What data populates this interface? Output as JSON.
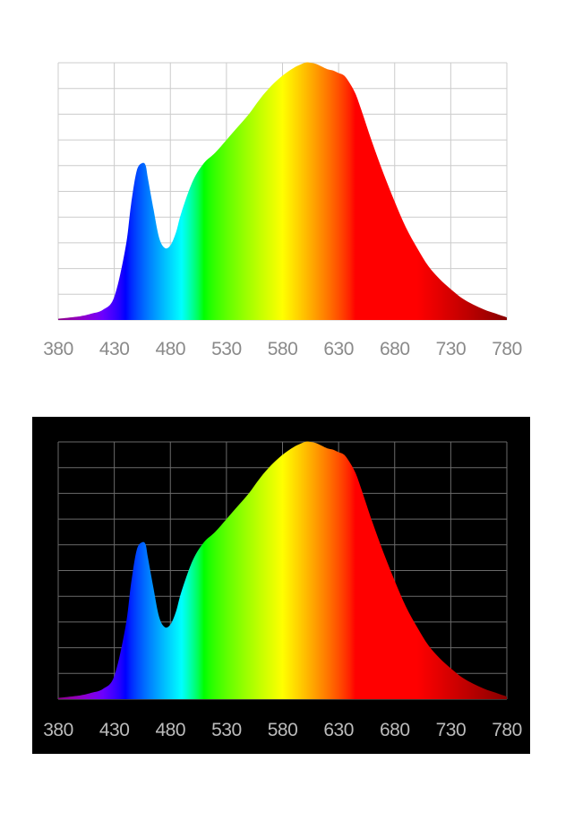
{
  "chart_data": [
    {
      "type": "area",
      "theme": "light",
      "background": "#ffffff",
      "grid": true,
      "grid_color": "#cccccc",
      "label_color": "#8a8a8a",
      "xlim": [
        380,
        780
      ],
      "ylim": [
        0,
        100
      ],
      "x_ticks": [
        "380",
        "430",
        "480",
        "530",
        "580",
        "630",
        "680",
        "730",
        "780"
      ],
      "fill": "visible-spectrum-gradient",
      "x": [
        380,
        400,
        410,
        420,
        430,
        440,
        445,
        450,
        455,
        458,
        460,
        465,
        470,
        475,
        480,
        485,
        490,
        500,
        510,
        520,
        530,
        540,
        550,
        560,
        570,
        580,
        590,
        600,
        605,
        610,
        615,
        620,
        625,
        630,
        635,
        640,
        645,
        650,
        660,
        670,
        680,
        690,
        700,
        710,
        720,
        730,
        740,
        750,
        760,
        770,
        780
      ],
      "y": [
        0.5,
        1.5,
        2.5,
        4,
        9,
        28,
        45,
        58,
        61,
        60,
        55,
        43,
        32,
        28,
        29,
        34,
        42,
        54,
        61,
        65,
        70,
        75,
        80,
        86,
        91,
        95,
        98,
        100,
        100,
        99.5,
        98.5,
        97.5,
        97,
        96,
        95,
        92,
        88,
        82,
        69,
        57,
        46,
        36,
        28,
        21,
        16,
        12,
        8.5,
        6,
        4,
        2.5,
        1
      ]
    },
    {
      "type": "area",
      "theme": "dark",
      "background": "#000000",
      "grid": true,
      "grid_color": "#6a6a6a",
      "label_color": "#bbbbbb",
      "xlim": [
        380,
        780
      ],
      "ylim": [
        0,
        100
      ],
      "x_ticks": [
        "380",
        "430",
        "480",
        "530",
        "580",
        "630",
        "680",
        "730",
        "780"
      ],
      "fill": "visible-spectrum-gradient",
      "x": [
        380,
        400,
        410,
        420,
        430,
        440,
        445,
        450,
        455,
        458,
        460,
        465,
        470,
        475,
        480,
        485,
        490,
        500,
        510,
        520,
        530,
        540,
        550,
        560,
        570,
        580,
        590,
        600,
        605,
        610,
        615,
        620,
        625,
        630,
        635,
        640,
        645,
        650,
        660,
        670,
        680,
        690,
        700,
        710,
        720,
        730,
        740,
        750,
        760,
        770,
        780
      ],
      "y": [
        0.5,
        1.5,
        2.5,
        4,
        9,
        28,
        45,
        58,
        61,
        60,
        55,
        43,
        32,
        28,
        29,
        34,
        42,
        54,
        61,
        65,
        70,
        75,
        80,
        86,
        91,
        95,
        98,
        100,
        100,
        99.5,
        98.5,
        97.5,
        97,
        96,
        95,
        92,
        88,
        82,
        69,
        57,
        46,
        36,
        28,
        21,
        16,
        12,
        8.5,
        6,
        4,
        2.5,
        1
      ]
    }
  ]
}
